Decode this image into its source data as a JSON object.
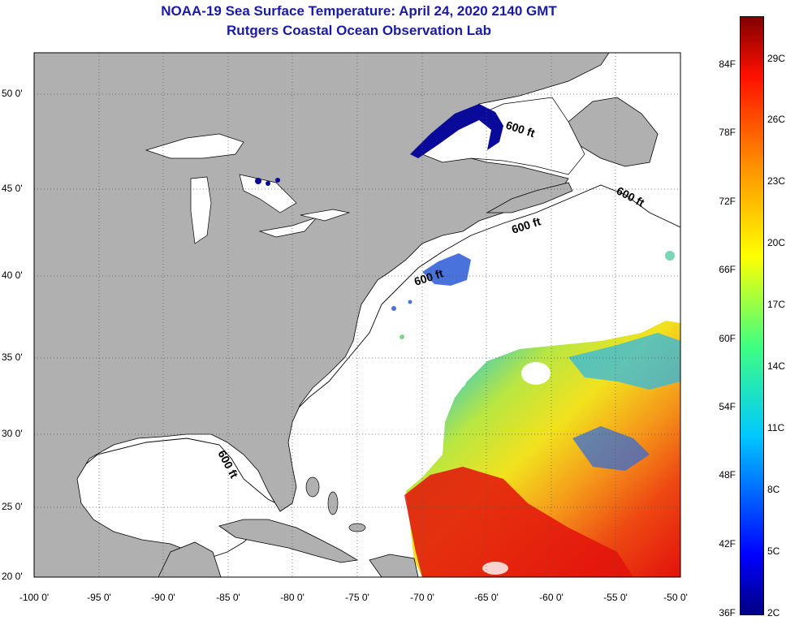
{
  "header": {
    "title": "NOAA-19 Sea Surface Temperature:  April 24, 2020 2140 GMT",
    "subtitle": "Rutgers Coastal Ocean Observation Lab"
  },
  "axes": {
    "lat_labels": [
      "50 0'",
      "45 0'",
      "40 0'",
      "35 0'",
      "30 0'",
      "25 0'",
      "20 0'"
    ],
    "lon_labels": [
      "-100 0'",
      "-95 0'",
      "-90 0'",
      "-85 0'",
      "-80 0'",
      "-75 0'",
      "-70 0'",
      "-65 0'",
      "-60 0'",
      "-55 0'",
      "-50 0'"
    ]
  },
  "contour_labels": [
    "600 ft",
    "600 ft",
    "600 ft",
    "600 ft",
    "600 ft"
  ],
  "colorbar": {
    "fahrenheit": [
      "84F",
      "78F",
      "72F",
      "66F",
      "60F",
      "54F",
      "48F",
      "42F",
      "36F"
    ],
    "celsius": [
      "29C",
      "26C",
      "23C",
      "20C",
      "17C",
      "14C",
      "11C",
      "8C",
      "5C",
      "2C"
    ]
  },
  "colors": {
    "land": "#b0b0b0",
    "water": "#ffffff",
    "title": "#1a1aa8",
    "warm": "#e2120c",
    "cold": "#0a0a9a"
  }
}
